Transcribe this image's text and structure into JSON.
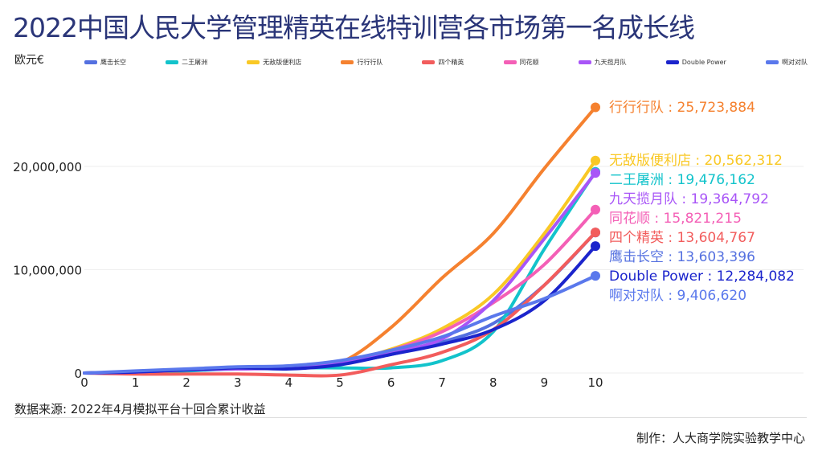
{
  "title": "2022中国人民大学管理精英在线特训营各市场第一名成长线",
  "unit": "欧元€",
  "source": "数据来源: 2022年4月模拟平台十回合累计收益",
  "credit": "制作：人大商学院实验教学中心",
  "chart_data": {
    "type": "line",
    "title": "2022中国人民大学管理精英在线特训营各市场第一名成长线",
    "ylabel": "欧元€",
    "x": [
      0,
      1,
      2,
      3,
      4,
      5,
      6,
      7,
      8,
      9,
      10
    ],
    "ylim": [
      0,
      26000000
    ],
    "yticks": [
      0,
      10000000,
      20000000
    ],
    "ytick_labels": [
      "0",
      "10,000,000",
      "20,000,000"
    ],
    "xtick_labels": [
      "0",
      "1",
      "2",
      "3",
      "4",
      "5",
      "6",
      "7",
      "8",
      "9",
      "10"
    ],
    "grid": true,
    "legend": "top",
    "series": [
      {
        "name": "鹰击长空",
        "color": "#5470e0",
        "final_label": "13,603,396",
        "values": [
          0,
          100000,
          300000,
          500000,
          600000,
          900000,
          1800000,
          3000000,
          4800000,
          8500000,
          13603396
        ]
      },
      {
        "name": "二王屠洲",
        "color": "#12c3cb",
        "final_label": "19,476,162",
        "values": [
          0,
          100000,
          200000,
          400000,
          500000,
          500000,
          500000,
          1200000,
          4000000,
          12000000,
          19476162
        ]
      },
      {
        "name": "无敌版便利店",
        "color": "#f9c825",
        "final_label": "20,562,312",
        "values": [
          0,
          100000,
          300000,
          500000,
          600000,
          1000000,
          2300000,
          4300000,
          7600000,
          13500000,
          20562312
        ]
      },
      {
        "name": "行行行队",
        "color": "#f5812f",
        "final_label": "25,723,884",
        "values": [
          0,
          100000,
          300000,
          500000,
          600000,
          1000000,
          4400000,
          9200000,
          13500000,
          19800000,
          25723884
        ]
      },
      {
        "name": "四个精英",
        "color": "#f25c5c",
        "final_label": "13,604,767",
        "values": [
          0,
          -100000,
          -100000,
          -100000,
          -200000,
          -200000,
          800000,
          2000000,
          4200000,
          8500000,
          13604767
        ]
      },
      {
        "name": "同花顺",
        "color": "#f45fb6",
        "final_label": "15,821,215",
        "values": [
          0,
          100000,
          300000,
          400000,
          500000,
          900000,
          2200000,
          4000000,
          6800000,
          10500000,
          15821215
        ]
      },
      {
        "name": "九天揽月队",
        "color": "#a855f7",
        "final_label": "19,364,792",
        "values": [
          0,
          100000,
          300000,
          400000,
          500000,
          900000,
          2000000,
          3300000,
          7000000,
          13000000,
          19364792
        ]
      },
      {
        "name": "Double Power",
        "color": "#1b24cc",
        "final_label": "12,284,082",
        "values": [
          0,
          100000,
          300000,
          500000,
          400000,
          800000,
          1800000,
          2800000,
          4200000,
          7000000,
          12284082
        ]
      },
      {
        "name": "啊对对队",
        "color": "#5a78ec",
        "final_label": "9,406,620",
        "values": [
          0,
          200000,
          400000,
          600000,
          700000,
          1200000,
          2200000,
          3500000,
          5500000,
          7200000,
          9406620
        ]
      }
    ]
  }
}
